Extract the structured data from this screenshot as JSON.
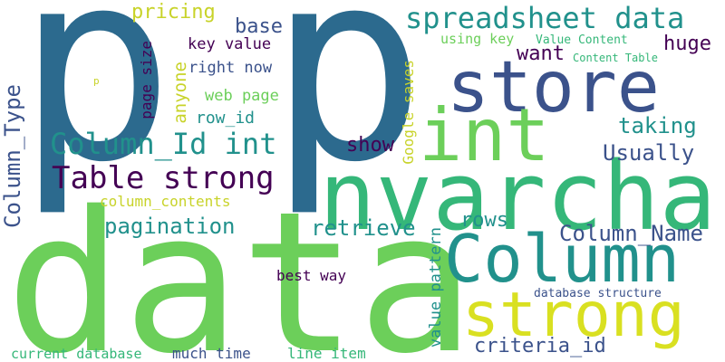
{
  "colors": {
    "green": "#6ccf5a",
    "teal": "#21918c",
    "navy": "#3b528b",
    "blue": "#2c6a8e",
    "yellow": "#d9e021",
    "purple": "#440154",
    "lime": "#a8d84a",
    "seafoam": "#35b779",
    "gold": "#c8d32a"
  },
  "words": {
    "data": "data",
    "p1": "p",
    "p2": "p",
    "nvarchar": "nvarchar",
    "store": "store",
    "int": "int",
    "column": "Column",
    "strong": "strong",
    "spreadsheet_data": "spreadsheet data",
    "column_id_int": "Column_Id int",
    "table_strong": "Table strong",
    "column_type": "Column_Type",
    "pagination": "pagination",
    "column_name": "Column_Name",
    "retrieve": "retrieve",
    "rows": "rows",
    "show": "show",
    "taking": "taking",
    "usually": "Usually",
    "huge": "huge",
    "want": "want",
    "pricing": "pricing",
    "base": "base",
    "key_value": "key value",
    "right_now": "right now",
    "web_page": "web page",
    "row_id": "row_id",
    "anyone": "anyone",
    "page_size": "page size",
    "using_key": "using key",
    "value_content": "Value Content",
    "content_table": "Content Table",
    "google_saves": "Google saves",
    "value_pattern": "value pattern",
    "column_contents": "column_contents",
    "best_way": "best way",
    "database_structure": "database structure",
    "criteria_id": "criteria_id",
    "current_database": "current database",
    "much_time": "much time",
    "line_item": "line item",
    "p_small": "p"
  }
}
